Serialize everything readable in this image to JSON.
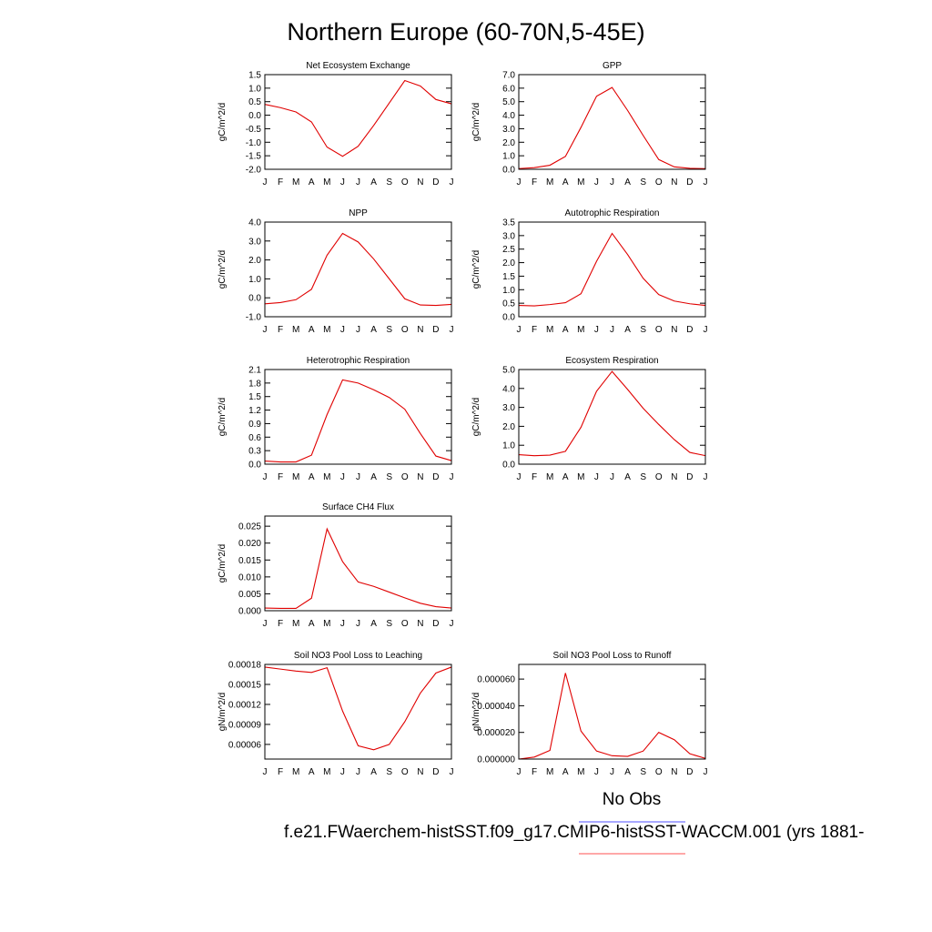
{
  "title": "Northern Europe (60-70N,5-45E)",
  "legend": [
    {
      "name": "No Obs",
      "color": "#8c8cff"
    },
    {
      "name": "f.e21.FWaerchem-histSST.f09_g17.CMIP6-histSST-WACCM.001 (yrs 1881-",
      "color": "#ff8c8c"
    }
  ],
  "chart_data": [
    {
      "type": "line",
      "title": "Net Ecosystem Exchange",
      "ylabel": "gC/m^2/d",
      "color": "#e00000",
      "categories": [
        "J",
        "F",
        "M",
        "A",
        "M",
        "J",
        "J",
        "A",
        "S",
        "O",
        "N",
        "D",
        "J"
      ],
      "values": [
        0.4,
        0.28,
        0.12,
        -0.25,
        -1.18,
        -1.52,
        -1.15,
        -0.38,
        0.45,
        1.28,
        1.08,
        0.58,
        0.42
      ],
      "ylim": [
        -2,
        1.5
      ],
      "yticks": [
        {
          "value": -2,
          "label": "-2.0"
        },
        -1.5,
        {
          "value": -1,
          "label": "-1.0"
        },
        -0.5,
        {
          "value": 0,
          "label": "0.0"
        },
        0.5,
        {
          "value": 1,
          "label": "1.0"
        },
        1.5
      ]
    },
    {
      "type": "line",
      "title": "GPP",
      "ylabel": "gC/m^2/d",
      "color": "#e00000",
      "categories": [
        "J",
        "F",
        "M",
        "A",
        "M",
        "J",
        "J",
        "A",
        "S",
        "O",
        "N",
        "D",
        "J"
      ],
      "values": [
        0.05,
        0.12,
        0.3,
        0.95,
        3.1,
        5.4,
        6.05,
        4.35,
        2.5,
        0.72,
        0.18,
        0.07,
        0.05
      ],
      "ylim": [
        0,
        7
      ],
      "yticks": [
        {
          "value": 0,
          "label": "0.0"
        },
        {
          "value": 1,
          "label": "1.0"
        },
        {
          "value": 2,
          "label": "2.0"
        },
        {
          "value": 3,
          "label": "3.0"
        },
        {
          "value": 4,
          "label": "4.0"
        },
        {
          "value": 5,
          "label": "5.0"
        },
        {
          "value": 6,
          "label": "6.0"
        },
        {
          "value": 7,
          "label": "7.0"
        }
      ]
    },
    {
      "type": "line",
      "title": "NPP",
      "ylabel": "gC/m^2/d",
      "color": "#e00000",
      "categories": [
        "J",
        "F",
        "M",
        "A",
        "M",
        "J",
        "J",
        "A",
        "S",
        "O",
        "N",
        "D",
        "J"
      ],
      "values": [
        -0.32,
        -0.25,
        -0.1,
        0.45,
        2.25,
        3.4,
        2.95,
        2.05,
        1.0,
        -0.05,
        -0.38,
        -0.4,
        -0.35
      ],
      "ylim": [
        -1,
        4
      ],
      "yticks": [
        {
          "value": -1,
          "label": "-1.0"
        },
        {
          "value": 0,
          "label": "0.0"
        },
        {
          "value": 1,
          "label": "1.0"
        },
        {
          "value": 2,
          "label": "2.0"
        },
        {
          "value": 3,
          "label": "3.0"
        },
        {
          "value": 4,
          "label": "4.0"
        }
      ]
    },
    {
      "type": "line",
      "title": "Autotrophic Respiration",
      "ylabel": "gC/m^2/d",
      "color": "#e00000",
      "categories": [
        "J",
        "F",
        "M",
        "A",
        "M",
        "J",
        "J",
        "A",
        "S",
        "O",
        "N",
        "D",
        "J"
      ],
      "values": [
        0.42,
        0.4,
        0.45,
        0.52,
        0.85,
        2.05,
        3.08,
        2.3,
        1.42,
        0.82,
        0.58,
        0.48,
        0.42
      ],
      "ylim": [
        0,
        3.5
      ],
      "yticks": [
        {
          "value": 0,
          "label": "0.0"
        },
        0.5,
        {
          "value": 1,
          "label": "1.0"
        },
        1.5,
        {
          "value": 2,
          "label": "2.0"
        },
        2.5,
        {
          "value": 3,
          "label": "3.0"
        },
        3.5
      ]
    },
    {
      "type": "line",
      "title": "Heterotrophic Respiration",
      "ylabel": "gC/m^2/d",
      "color": "#e00000",
      "categories": [
        "J",
        "F",
        "M",
        "A",
        "M",
        "J",
        "J",
        "A",
        "S",
        "O",
        "N",
        "D",
        "J"
      ],
      "values": [
        0.07,
        0.05,
        0.05,
        0.2,
        1.1,
        1.87,
        1.8,
        1.65,
        1.48,
        1.22,
        0.68,
        0.18,
        0.08
      ],
      "ylim": [
        0,
        2.1
      ],
      "yticks": [
        {
          "value": 0,
          "label": "0.0"
        },
        0.3,
        0.6,
        0.9,
        1.2,
        1.5,
        1.8,
        2.1
      ]
    },
    {
      "type": "line",
      "title": "Ecosystem Respiration",
      "ylabel": "gC/m^2/d",
      "color": "#e00000",
      "categories": [
        "J",
        "F",
        "M",
        "A",
        "M",
        "J",
        "J",
        "A",
        "S",
        "O",
        "N",
        "D",
        "J"
      ],
      "values": [
        0.5,
        0.45,
        0.48,
        0.68,
        1.95,
        3.85,
        4.9,
        3.95,
        2.95,
        2.1,
        1.3,
        0.62,
        0.45
      ],
      "ylim": [
        0,
        5
      ],
      "yticks": [
        {
          "value": 0,
          "label": "0.0"
        },
        {
          "value": 1,
          "label": "1.0"
        },
        {
          "value": 2,
          "label": "2.0"
        },
        {
          "value": 3,
          "label": "3.0"
        },
        {
          "value": 4,
          "label": "4.0"
        },
        {
          "value": 5,
          "label": "5.0"
        }
      ]
    },
    {
      "type": "line",
      "title": "Surface CH4 Flux",
      "ylabel": "gC/m^2/d",
      "color": "#e00000",
      "categories": [
        "J",
        "F",
        "M",
        "A",
        "M",
        "J",
        "J",
        "A",
        "S",
        "O",
        "N",
        "D",
        "J"
      ],
      "values": [
        0.0008,
        0.0007,
        0.0007,
        0.0037,
        0.0242,
        0.0145,
        0.0085,
        0.0072,
        0.0055,
        0.0038,
        0.0022,
        0.0012,
        0.0008
      ],
      "ylim": [
        0,
        0.028
      ],
      "yticks": [
        {
          "value": 0,
          "label": "0.000"
        },
        0.005,
        {
          "value": 0.01,
          "label": "0.010"
        },
        0.015,
        {
          "value": 0.02,
          "label": "0.020"
        },
        0.025
      ]
    },
    {
      "type": "line",
      "title": "Soil NO3 Pool Loss to Leaching",
      "ylabel": "gN/m^2/d",
      "color": "#e00000",
      "categories": [
        "J",
        "F",
        "M",
        "A",
        "M",
        "J",
        "J",
        "A",
        "S",
        "O",
        "N",
        "D",
        "J"
      ],
      "values": [
        0.000176,
        0.000173,
        0.00017,
        0.000168,
        0.000175,
        0.00011,
        5.8e-05,
        5.2e-05,
        6e-05,
        9.4e-05,
        0.000137,
        0.000167,
        0.000176
      ],
      "ylim": [
        3.8e-05,
        0.00018
      ],
      "yticks": [
        6e-05,
        9e-05,
        0.00012,
        0.00015,
        0.00018
      ]
    },
    {
      "type": "line",
      "title": "Soil NO3 Pool Loss to Runoff",
      "ylabel": "gN/m^2/d",
      "color": "#e00000",
      "categories": [
        "J",
        "F",
        "M",
        "A",
        "M",
        "J",
        "J",
        "A",
        "S",
        "O",
        "N",
        "D",
        "J"
      ],
      "values": [
        0,
        1.5e-06,
        6.5e-06,
        6.45e-05,
        2.1e-05,
        6e-06,
        2.5e-06,
        2e-06,
        6e-06,
        2e-05,
        1.45e-05,
        4e-06,
        5e-07
      ],
      "ylim": [
        0,
        7.1e-05
      ],
      "yticks": [
        {
          "value": 0,
          "label": "0.000000"
        },
        {
          "value": 2e-05,
          "label": "0.000020"
        },
        {
          "value": 4e-05,
          "label": "0.000040"
        },
        {
          "value": 6e-05,
          "label": "0.000060"
        }
      ]
    }
  ]
}
